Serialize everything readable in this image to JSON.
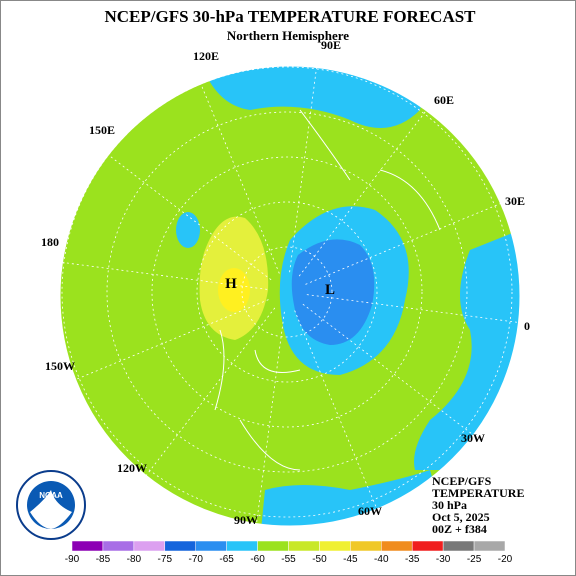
{
  "header": {
    "title": "NCEP/GFS 30-hPa TEMPERATURE FORECAST",
    "subtitle": "Northern Hemisphere"
  },
  "map": {
    "longitude_labels": [
      "90E",
      "120E",
      "60E",
      "150E",
      "30E",
      "180",
      "0",
      "150W",
      "30W",
      "120W",
      "60W",
      "90W"
    ],
    "centers": [
      {
        "label": "H",
        "color": "#000000"
      },
      {
        "label": "L",
        "color": "#000000"
      }
    ],
    "fill_colors": {
      "base": "#9be21e",
      "cool": "#28c4f8",
      "cold": "#2a8ef0",
      "warm": "#e4f03c",
      "warmest": "#fff020"
    }
  },
  "info": [
    "NCEP/GFS",
    "TEMPERATURE",
    "30 hPa",
    "Oct 5, 2025",
    "00Z + f384"
  ],
  "logo": {
    "label": "NOAA"
  },
  "colorbar": {
    "ticks": [
      -90,
      -85,
      -80,
      -75,
      -70,
      -65,
      -60,
      -55,
      -50,
      -45,
      -40,
      -35,
      -30,
      -25,
      -20
    ],
    "colors": [
      "#8c00b4",
      "#a86ee6",
      "#dca0f0",
      "#1464dc",
      "#2a8ef0",
      "#28c4f8",
      "#9be21e",
      "#c8e828",
      "#f0f032",
      "#f0c828",
      "#f08c1e",
      "#f01e1e",
      "#787878",
      "#a8a8a8"
    ]
  }
}
